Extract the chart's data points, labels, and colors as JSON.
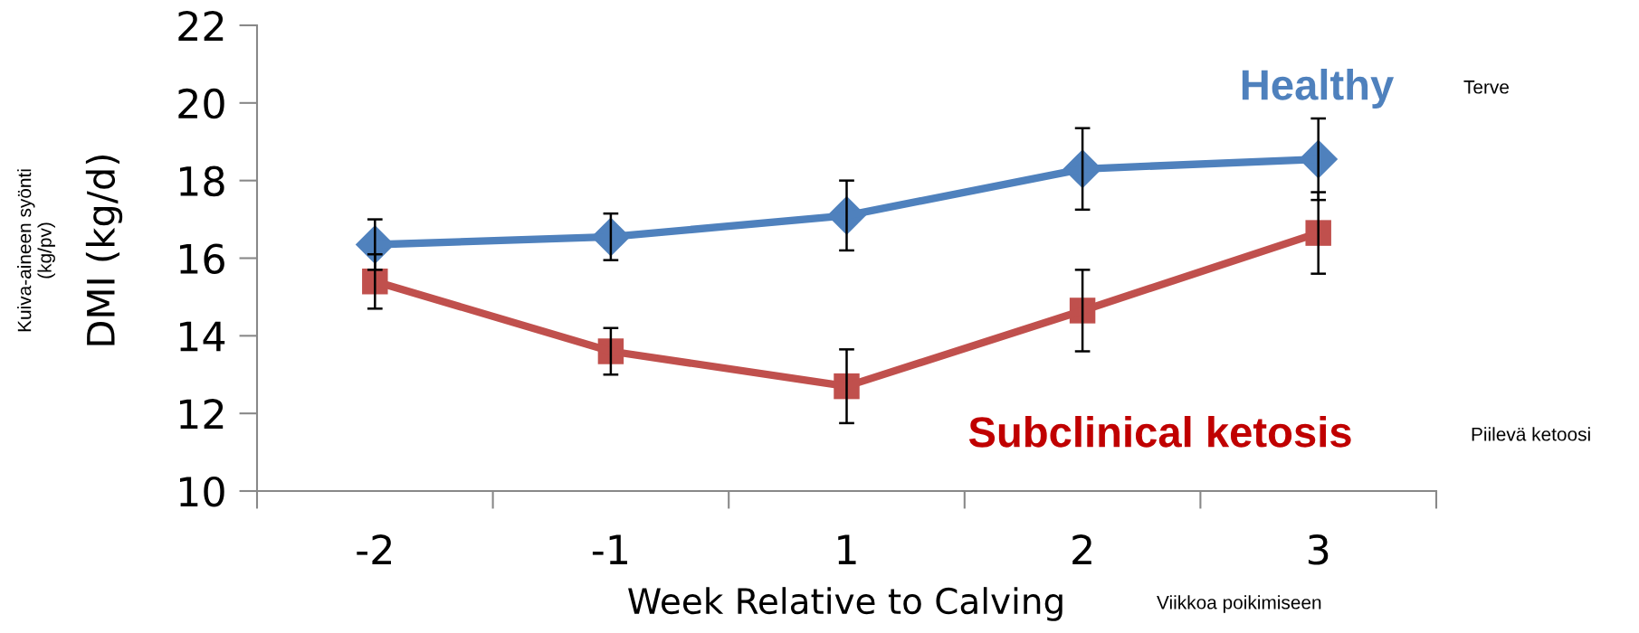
{
  "chart_data": {
    "type": "line",
    "categories": [
      "-2",
      "-1",
      "1",
      "2",
      "3"
    ],
    "xlabel": "Week Relative to Calving",
    "ylabel": "DMI (kg/d)",
    "ylim": [
      10,
      22
    ],
    "yticks": [
      10,
      12,
      14,
      16,
      18,
      20,
      22
    ],
    "grid": false,
    "legend": false,
    "series": [
      {
        "name": "Healthy",
        "color": "#4f81bd",
        "marker": "diamond",
        "values": [
          16.35,
          16.55,
          17.1,
          18.3,
          18.55
        ],
        "errors": [
          0.65,
          0.6,
          0.9,
          1.05,
          1.05
        ]
      },
      {
        "name": "Subclinical ketosis",
        "color": "#c0504d",
        "marker": "square",
        "values": [
          15.4,
          13.6,
          12.7,
          14.65,
          16.65
        ],
        "errors": [
          0.7,
          0.6,
          0.95,
          1.05,
          1.05
        ]
      }
    ],
    "annotations": [
      "Kuiva-aineen syönti\n(kg/pv)",
      "Terve",
      "Piilevä ketoosi",
      "Viikkoa poikimiseen"
    ]
  }
}
